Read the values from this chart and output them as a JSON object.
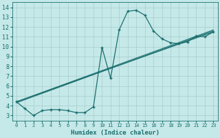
{
  "xlabel": "Humidex (Indice chaleur)",
  "bg_color": "#c5e8e8",
  "grid_color": "#a8cccc",
  "line_color": "#1a6e6e",
  "xlim": [
    -0.5,
    23.5
  ],
  "ylim": [
    2.5,
    14.5
  ],
  "yticks": [
    3,
    4,
    5,
    6,
    7,
    8,
    9,
    10,
    11,
    12,
    13,
    14
  ],
  "xticks": [
    0,
    1,
    2,
    3,
    4,
    5,
    6,
    7,
    8,
    9,
    10,
    11,
    12,
    13,
    14,
    15,
    16,
    17,
    18,
    19,
    20,
    21,
    22,
    23
  ],
  "main_series": {
    "x": [
      0,
      1,
      2,
      3,
      4,
      5,
      6,
      7,
      8,
      9,
      10,
      11,
      12,
      13,
      14,
      15,
      16,
      17,
      18,
      19,
      20,
      21,
      22,
      23
    ],
    "y": [
      4.4,
      3.7,
      3.0,
      3.5,
      3.6,
      3.6,
      3.5,
      3.3,
      3.3,
      3.9,
      9.9,
      6.8,
      11.7,
      13.6,
      13.7,
      13.2,
      11.6,
      10.8,
      10.4,
      10.3,
      10.5,
      11.1,
      11.0,
      11.5
    ],
    "marker": "+",
    "markersize": 3.0,
    "linewidth": 0.9
  },
  "trend_lines": [
    {
      "x": [
        0,
        23
      ],
      "y": [
        4.4,
        11.7
      ]
    },
    {
      "x": [
        0,
        23
      ],
      "y": [
        4.4,
        11.5
      ]
    },
    {
      "x": [
        0,
        23
      ],
      "y": [
        4.3,
        11.6
      ]
    }
  ]
}
